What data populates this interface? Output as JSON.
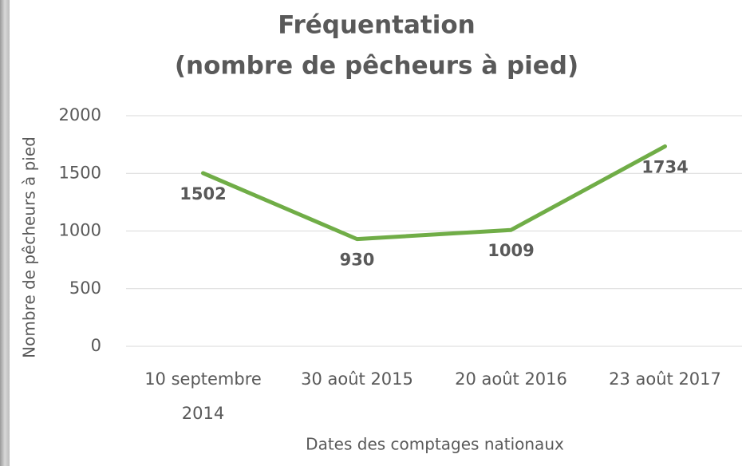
{
  "chart_data": {
    "type": "line",
    "title": "Fréquentation",
    "subtitle": "(nombre de pêcheurs à pied)",
    "x_label": "Dates des comptages nationaux",
    "y_label": "Nombre de pêcheurs à pied",
    "categories": [
      "10 septembre 2014",
      "30 août 2015",
      "20 août 2016",
      "23 août 2017"
    ],
    "series": [
      {
        "name": "Fréquentation",
        "color": "#70ad47",
        "values": [
          1502,
          930,
          1009,
          1734
        ]
      }
    ],
    "ylim": [
      0,
      2000
    ],
    "yticks": [
      0,
      500,
      1000,
      1500,
      2000
    ],
    "grid": true
  }
}
